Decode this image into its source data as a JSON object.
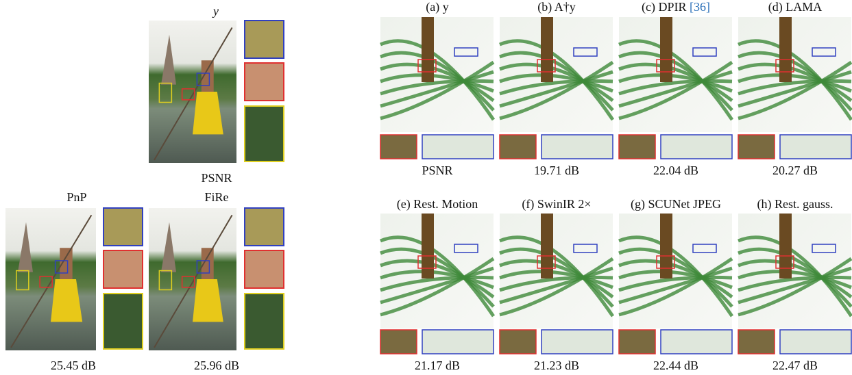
{
  "left": {
    "top_label": "y",
    "psnr_label": "PSNR",
    "methods": [
      {
        "name": "PnP",
        "psnr": "25.45 dB"
      },
      {
        "name": "FiRe",
        "psnr": "25.96 dB"
      }
    ]
  },
  "right": {
    "panels": [
      {
        "label": "(a) y",
        "psnr": "PSNR"
      },
      {
        "label": "(b) A†y",
        "psnr": "19.71 dB"
      },
      {
        "label": "(c) DPIR ",
        "citation": "[36]",
        "psnr": "22.04 dB"
      },
      {
        "label": "(d) LAMA",
        "psnr": "20.27 dB"
      },
      {
        "label": "(e) Rest. Motion",
        "psnr": "21.17 dB"
      },
      {
        "label": "(f) SwinIR 2×",
        "psnr": "21.23 dB"
      },
      {
        "label": "(g) SCUNet JPEG",
        "psnr": "22.44 dB"
      },
      {
        "label": "(h) Rest. gauss.",
        "psnr": "22.47 dB"
      }
    ]
  }
}
